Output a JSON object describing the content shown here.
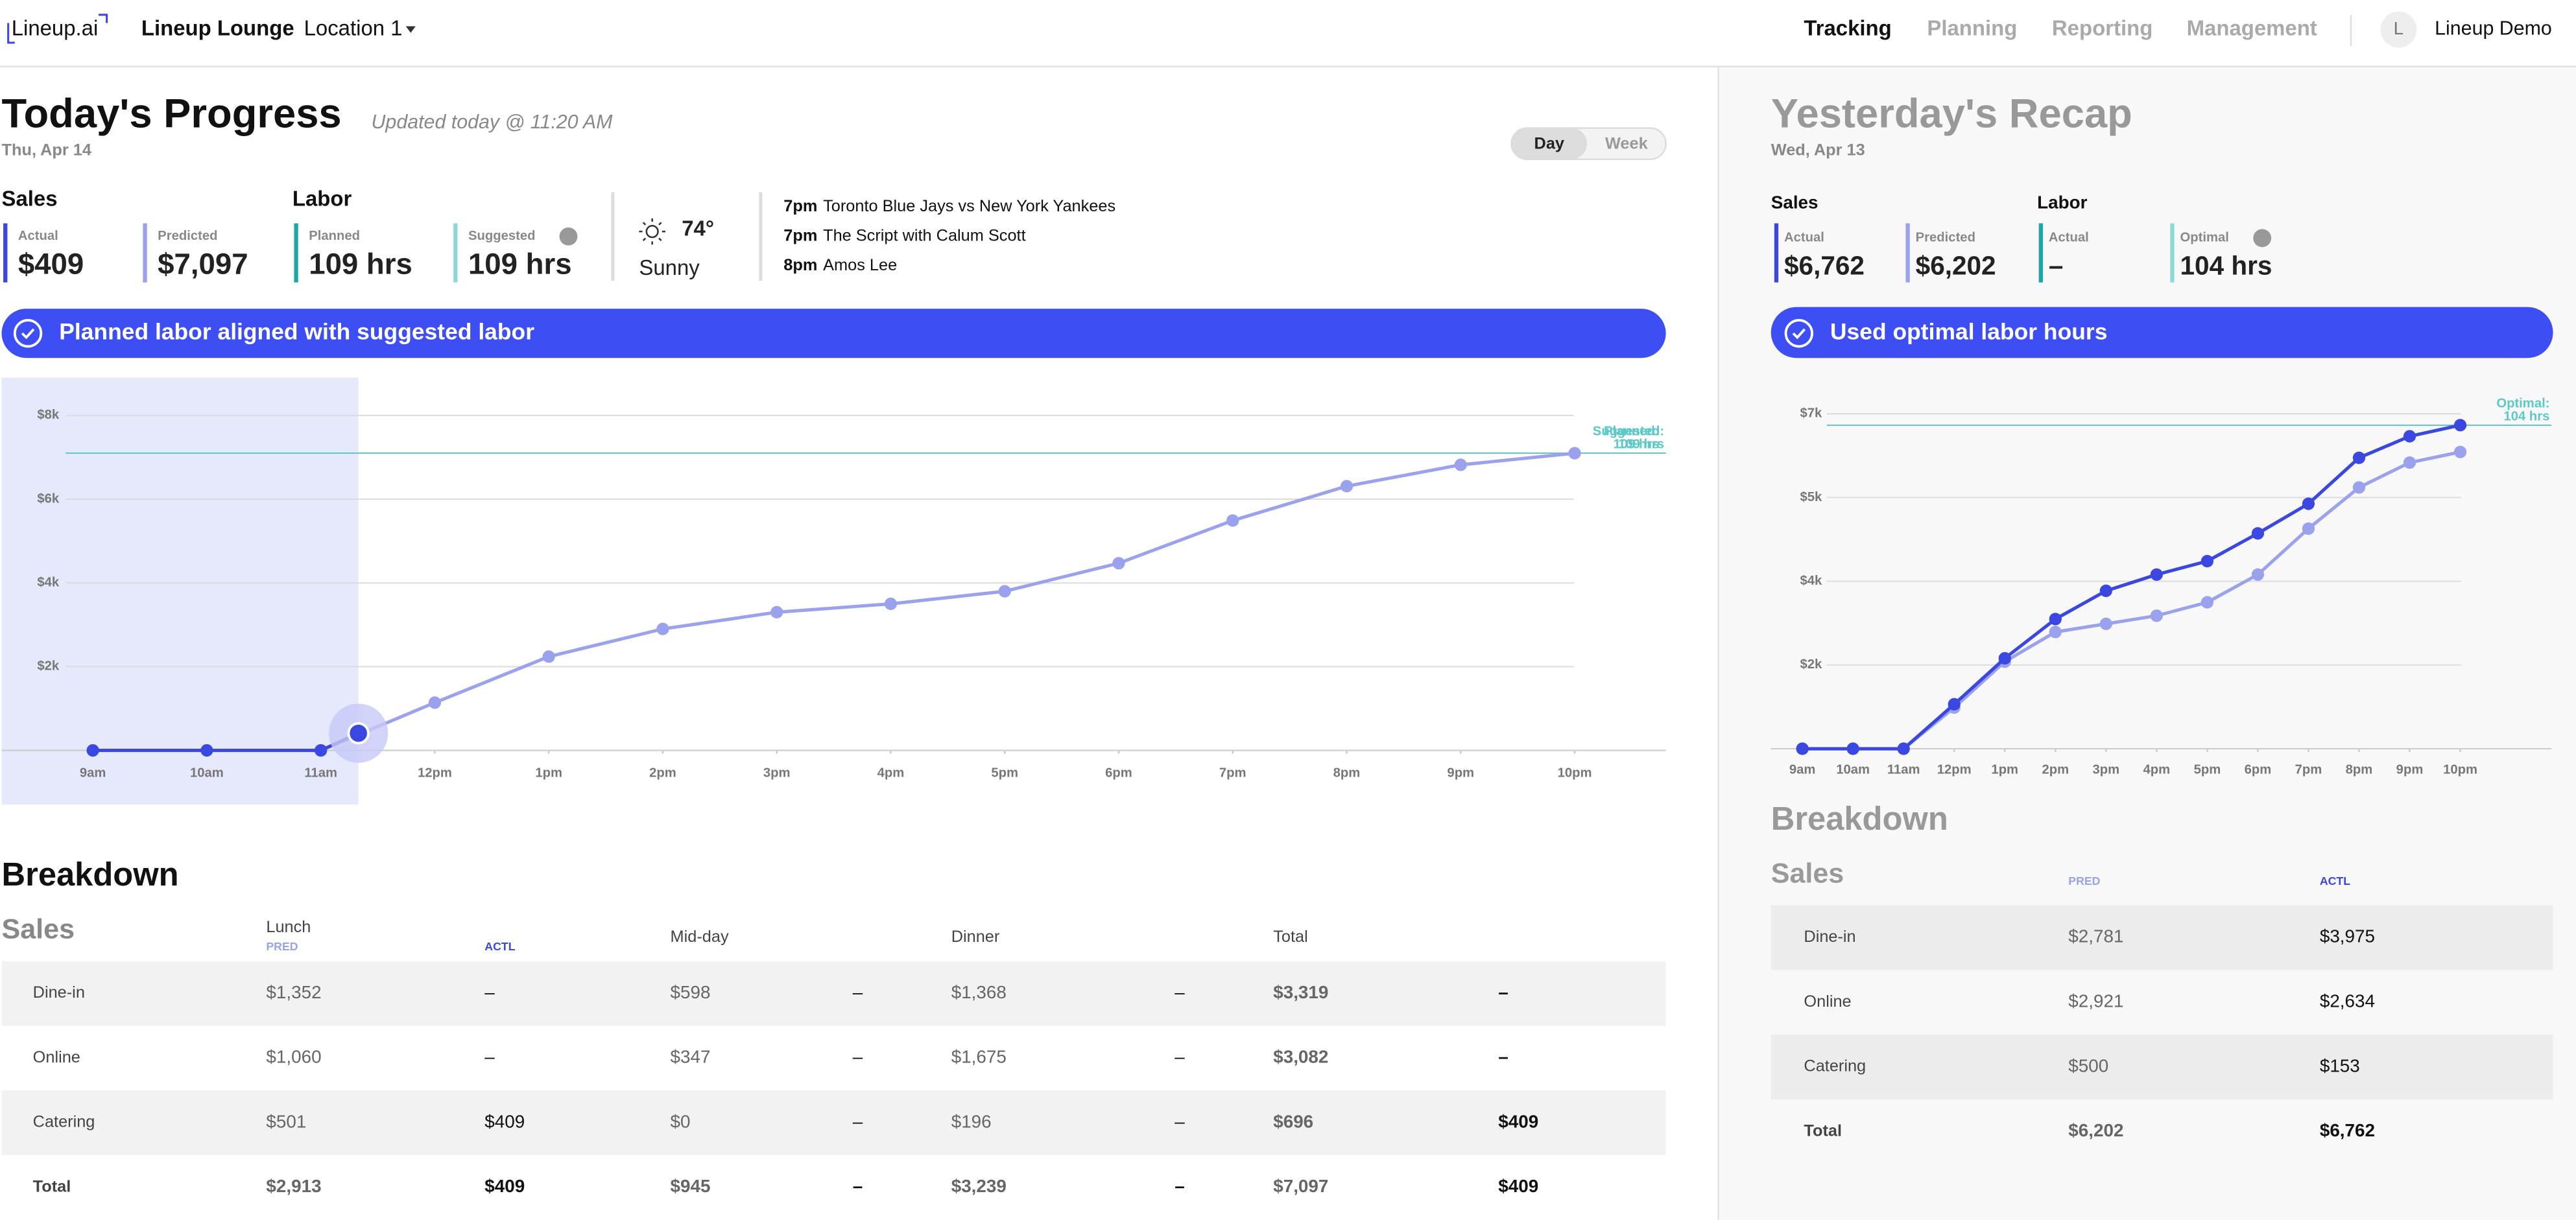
{
  "nav": {
    "logo": "Lineup.ai",
    "restaurant": "Lineup Lounge",
    "location": "Location 1",
    "tabs": [
      "Tracking",
      "Planning",
      "Reporting",
      "Management"
    ],
    "avatar": "L",
    "user": "Lineup Demo"
  },
  "today": {
    "title": "Today's Progress",
    "updated": "Updated today @ 11:20 AM",
    "date": "Thu, Apr 14",
    "toggle": [
      "Day",
      "Week"
    ],
    "sales": {
      "heading": "Sales",
      "actual": {
        "label": "Actual",
        "value": "$409"
      },
      "predicted": {
        "label": "Predicted",
        "value": "$7,097"
      }
    },
    "labor": {
      "heading": "Labor",
      "planned": {
        "label": "Planned",
        "value": "109 hrs"
      },
      "suggested": {
        "label": "Suggested",
        "value": "109 hrs"
      }
    },
    "weather": {
      "temp": "74°",
      "condition": "Sunny"
    },
    "events": [
      {
        "time": "7pm",
        "name": "Toronto Blue Jays vs New York Yankees"
      },
      {
        "time": "7pm",
        "name": "The Script with Calum Scott"
      },
      {
        "time": "8pm",
        "name": "Amos Lee"
      }
    ],
    "banner": "Planned labor aligned with suggested labor",
    "breakdown": {
      "title": "Breakdown",
      "section": "Sales",
      "header": [
        "Lunch",
        "Mid-day",
        "Dinner",
        "Total"
      ],
      "pred": "PRED",
      "actl": "ACTL",
      "rows": [
        [
          "Dine-in",
          "$1,352",
          "–",
          "$598",
          "–",
          "$1,368",
          "–",
          "$3,319",
          "–"
        ],
        [
          "Online",
          "$1,060",
          "–",
          "$347",
          "–",
          "$1,675",
          "–",
          "$3,082",
          "–"
        ],
        [
          "Catering",
          "$501",
          "$409",
          "$0",
          "–",
          "$196",
          "–",
          "$696",
          "$409"
        ],
        [
          "Total",
          "$2,913",
          "$409",
          "$945",
          "–",
          "$3,239",
          "–",
          "$7,097",
          "$409"
        ]
      ]
    }
  },
  "yesterday": {
    "title": "Yesterday's Recap",
    "date": "Wed, Apr 13",
    "sales": {
      "heading": "Sales",
      "actual": {
        "label": "Actual",
        "value": "$6,762"
      },
      "predicted": {
        "label": "Predicted",
        "value": "$6,202"
      }
    },
    "labor": {
      "heading": "Labor",
      "actual": {
        "label": "Actual",
        "value": "–"
      },
      "optimal": {
        "label": "Optimal",
        "value": "104 hrs"
      }
    },
    "banner": "Used optimal labor hours",
    "breakdown": {
      "title": "Breakdown",
      "section": "Sales",
      "pred": "PRED",
      "actl": "ACTL",
      "rows": [
        [
          "Dine-in",
          "$2,781",
          "$3,975"
        ],
        [
          "Online",
          "$2,921",
          "$2,634"
        ],
        [
          "Catering",
          "$500",
          "$153"
        ],
        [
          "Total",
          "$6,202",
          "$6,762"
        ]
      ]
    }
  },
  "chart_data": [
    {
      "type": "line",
      "xlim": [
        8.2,
        22.8
      ],
      "ylim": [
        0,
        8000
      ],
      "grid": true,
      "highlight_current": true,
      "xticks": [
        {
          "value": 9,
          "label": "9am"
        },
        {
          "value": 10,
          "label": "10am"
        },
        {
          "value": 11,
          "label": "11am"
        },
        {
          "value": 12,
          "label": "12pm"
        },
        {
          "value": 13,
          "label": "1pm"
        },
        {
          "value": 14,
          "label": "2pm"
        },
        {
          "value": 15,
          "label": "3pm"
        },
        {
          "value": 16,
          "label": "4pm"
        },
        {
          "value": 17,
          "label": "5pm"
        },
        {
          "value": 18,
          "label": "6pm"
        },
        {
          "value": 19,
          "label": "7pm"
        },
        {
          "value": 20,
          "label": "8pm"
        },
        {
          "value": 21,
          "label": "9pm"
        },
        {
          "value": 22,
          "label": "10pm"
        }
      ],
      "yticks": [
        {
          "value": 2000,
          "label": "$2k"
        },
        {
          "value": 4000,
          "label": "$4k"
        },
        {
          "value": 6000,
          "label": "$6k"
        },
        {
          "value": 8000,
          "label": "$8k"
        }
      ],
      "series": [
        {
          "color": "#9aa2ee",
          "x": [
            11,
            12,
            13,
            14,
            15,
            16,
            17,
            18,
            19,
            20,
            21,
            22
          ],
          "values": [
            0,
            1140,
            2240,
            2900,
            3300,
            3500,
            3800,
            4470,
            5490,
            6310,
            6820,
            7097
          ]
        },
        {
          "color": "#3a47e0",
          "x": [
            9,
            10,
            11,
            11.33
          ],
          "values": [
            0,
            0,
            0,
            409
          ]
        }
      ],
      "ref_lines": [
        {
          "value": 7100,
          "color": "#5cc8c8",
          "label": "Suggested:",
          "sublabel": "109 hrs"
        },
        {
          "value": 7100,
          "color": "#5cc8c8",
          "label": "Planned:",
          "sublabel": "109 hrs"
        }
      ]
    },
    {
      "type": "line",
      "xlim": [
        8.38,
        23.8
      ],
      "ylim": [
        0,
        7000
      ],
      "grid": true,
      "highlight_current": false,
      "xticks": [
        {
          "value": 9,
          "label": "9am"
        },
        {
          "value": 10,
          "label": "10am"
        },
        {
          "value": 11,
          "label": "11am"
        },
        {
          "value": 12,
          "label": "12pm"
        },
        {
          "value": 13,
          "label": "1pm"
        },
        {
          "value": 14,
          "label": "2pm"
        },
        {
          "value": 15,
          "label": "3pm"
        },
        {
          "value": 16,
          "label": "4pm"
        },
        {
          "value": 17,
          "label": "5pm"
        },
        {
          "value": 18,
          "label": "6pm"
        },
        {
          "value": 19,
          "label": "7pm"
        },
        {
          "value": 20,
          "label": "8pm"
        },
        {
          "value": 21,
          "label": "9pm"
        },
        {
          "value": 22,
          "label": "10pm"
        }
      ],
      "yticks": [
        {
          "value": 1750,
          "label": "$2k"
        },
        {
          "value": 3500,
          "label": "$4k"
        },
        {
          "value": 5250,
          "label": "$5k"
        },
        {
          "value": 7000,
          "label": "$7k"
        }
      ],
      "series": [
        {
          "color": "#9aa2ee",
          "x": [
            9,
            10,
            11,
            12,
            13,
            14,
            15,
            16,
            17,
            18,
            19,
            20,
            21,
            22
          ],
          "values": [
            0,
            0,
            0,
            860,
            1820,
            2440,
            2610,
            2780,
            3060,
            3640,
            4600,
            5460,
            5980,
            6202
          ]
        },
        {
          "color": "#3a47e0",
          "x": [
            9,
            10,
            11,
            12,
            13,
            14,
            15,
            16,
            17,
            18,
            19,
            20,
            21,
            22
          ],
          "values": [
            0,
            0,
            0,
            930,
            1890,
            2710,
            3300,
            3640,
            3920,
            4500,
            5120,
            6080,
            6530,
            6762
          ]
        }
      ],
      "ref_lines": [
        {
          "value": 6760,
          "color": "#5cc8c8",
          "label": "Optimal:",
          "sublabel": "104 hrs"
        }
      ]
    }
  ]
}
